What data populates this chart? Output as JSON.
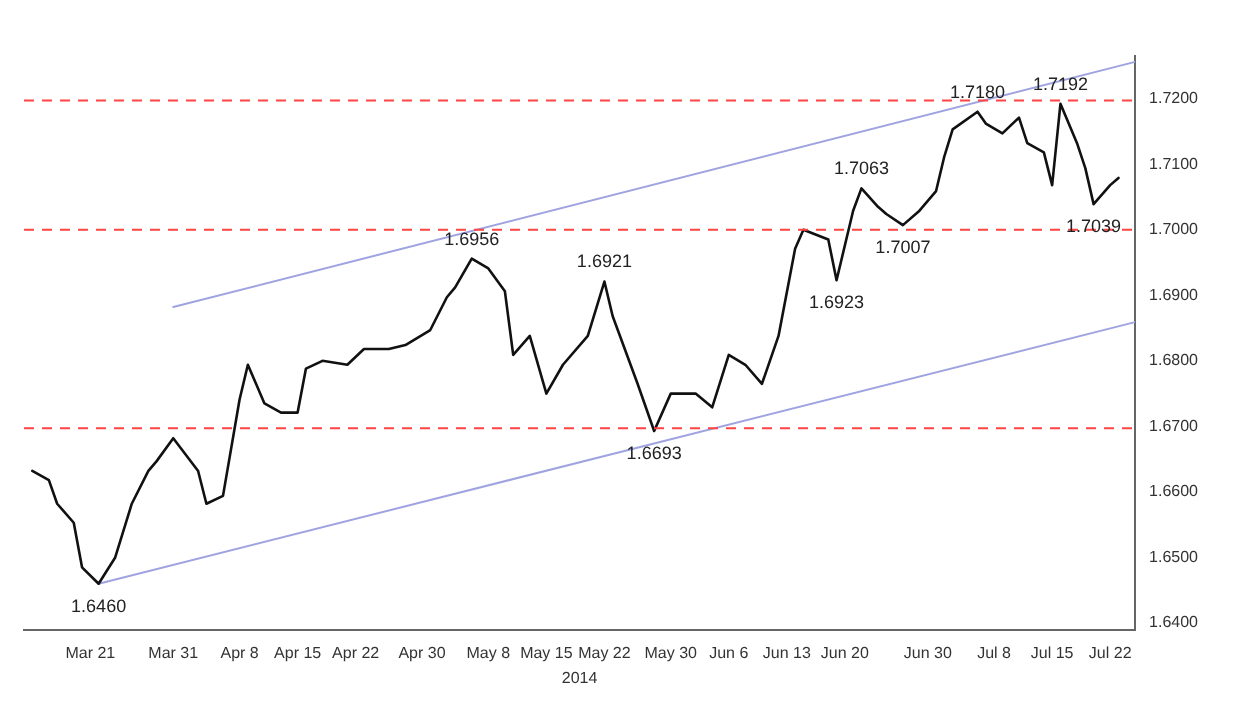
{
  "chart_data": {
    "type": "line",
    "xlabel": "2014",
    "x": [
      "2014-03-14",
      "2014-03-16",
      "2014-03-17",
      "2014-03-19",
      "2014-03-20",
      "2014-03-22",
      "2014-03-24",
      "2014-03-26",
      "2014-03-28",
      "2014-03-29",
      "2014-03-31",
      "2014-04-03",
      "2014-04-04",
      "2014-04-06",
      "2014-04-08",
      "2014-04-09",
      "2014-04-11",
      "2014-04-13",
      "2014-04-15",
      "2014-04-16",
      "2014-04-18",
      "2014-04-21",
      "2014-04-23",
      "2014-04-26",
      "2014-04-28",
      "2014-05-01",
      "2014-05-03",
      "2014-05-04",
      "2014-05-06",
      "2014-05-08",
      "2014-05-10",
      "2014-05-11",
      "2014-05-13",
      "2014-05-15",
      "2014-05-17",
      "2014-05-20",
      "2014-05-22",
      "2014-05-23",
      "2014-05-26",
      "2014-05-28",
      "2014-05-30",
      "2014-06-02",
      "2014-06-04",
      "2014-06-06",
      "2014-06-08",
      "2014-06-10",
      "2014-06-12",
      "2014-06-14",
      "2014-06-15",
      "2014-06-18",
      "2014-06-19",
      "2014-06-21",
      "2014-06-22",
      "2014-06-24",
      "2014-06-25",
      "2014-06-27",
      "2014-06-29",
      "2014-07-01",
      "2014-07-02",
      "2014-07-03",
      "2014-07-06",
      "2014-07-07",
      "2014-07-09",
      "2014-07-11",
      "2014-07-12",
      "2014-07-14",
      "2014-07-15",
      "2014-07-16",
      "2014-07-18",
      "2014-07-19",
      "2014-07-20",
      "2014-07-22",
      "2014-07-23"
    ],
    "series": [
      {
        "color": "#111111",
        "values": [
          1.6632,
          1.6618,
          1.6582,
          1.6553,
          1.6485,
          1.646,
          1.65,
          1.6582,
          1.6632,
          1.6647,
          1.6682,
          1.6632,
          1.6582,
          1.6594,
          1.6741,
          1.6794,
          1.6735,
          1.6721,
          1.6721,
          1.6788,
          1.68,
          1.6794,
          1.6818,
          1.6818,
          1.6824,
          1.6847,
          1.6897,
          1.6912,
          1.6956,
          1.6941,
          1.6906,
          1.6809,
          1.6838,
          1.675,
          1.6794,
          1.6838,
          1.6921,
          1.6868,
          1.6765,
          1.6693,
          1.675,
          1.675,
          1.6729,
          1.6809,
          1.6794,
          1.6765,
          1.6838,
          1.6971,
          1.7,
          1.6985,
          1.6923,
          1.7029,
          1.7063,
          1.7035,
          1.7024,
          1.7007,
          1.7029,
          1.7059,
          1.7112,
          1.7153,
          1.718,
          1.7162,
          1.7147,
          1.7171,
          1.7132,
          1.7118,
          1.7068,
          1.7192,
          1.7132,
          1.7094,
          1.7039,
          1.7068,
          1.7079
        ]
      },
      {
        "type": "line",
        "color": "#9fa3e0",
        "x": [
          "2014-03-31",
          "2014-07-25"
        ],
        "values": [
          1.6882,
          1.7256
        ]
      },
      {
        "type": "line",
        "color": "#9fa3e0",
        "x": [
          "2014-03-22",
          "2014-07-25"
        ],
        "values": [
          1.646,
          1.6859
        ]
      }
    ],
    "xlim": [
      "2014-03-13",
      "2014-07-25"
    ],
    "xticks": [
      {
        "value": "2014-03-21",
        "label": "Mar 21"
      },
      {
        "value": "2014-03-31",
        "label": "Mar 31"
      },
      {
        "value": "2014-04-08",
        "label": "Apr 8"
      },
      {
        "value": "2014-04-15",
        "label": "Apr 15"
      },
      {
        "value": "2014-04-22",
        "label": "Apr 22"
      },
      {
        "value": "2014-04-30",
        "label": "Apr 30"
      },
      {
        "value": "2014-05-08",
        "label": "May 8"
      },
      {
        "value": "2014-05-15",
        "label": "May 15"
      },
      {
        "value": "2014-05-22",
        "label": "May 22"
      },
      {
        "value": "2014-05-30",
        "label": "May 30"
      },
      {
        "value": "2014-06-06",
        "label": "Jun 6"
      },
      {
        "value": "2014-06-13",
        "label": "Jun 13"
      },
      {
        "value": "2014-06-20",
        "label": "Jun 20"
      },
      {
        "value": "2014-06-30",
        "label": "Jun 30"
      },
      {
        "value": "2014-07-08",
        "label": "Jul 8"
      },
      {
        "value": "2014-07-15",
        "label": "Jul 15"
      },
      {
        "value": "2014-07-22",
        "label": "Jul 22"
      }
    ],
    "ylim": [
      1.639,
      1.7265
    ],
    "yticks": [
      {
        "value": 1.64,
        "label": "1.6400"
      },
      {
        "value": 1.65,
        "label": "1.6500"
      },
      {
        "value": 1.66,
        "label": "1.6600"
      },
      {
        "value": 1.67,
        "label": "1.6700"
      },
      {
        "value": 1.68,
        "label": "1.6800"
      },
      {
        "value": 1.69,
        "label": "1.6900"
      },
      {
        "value": 1.7,
        "label": "1.7000"
      },
      {
        "value": 1.71,
        "label": "1.7100"
      },
      {
        "value": 1.72,
        "label": "1.7200"
      }
    ],
    "ref_lines": [
      {
        "axis": "y",
        "value": 1.7197,
        "color": "#ff4444",
        "line_style": "dashed"
      },
      {
        "axis": "y",
        "value": 1.7,
        "color": "#ff4444",
        "line_style": "dashed"
      },
      {
        "axis": "y",
        "value": 1.6697,
        "color": "#ff4444",
        "line_style": "dashed"
      }
    ],
    "annotations": [
      {
        "text": "1.6460",
        "x": "2014-03-22",
        "y": 1.646
      },
      {
        "text": "1.6956",
        "x": "2014-05-06",
        "y": 1.6956
      },
      {
        "text": "1.6921",
        "x": "2014-05-22",
        "y": 1.6921
      },
      {
        "text": "1.6693",
        "x": "2014-05-28",
        "y": 1.6693
      },
      {
        "text": "1.6923",
        "x": "2014-06-19",
        "y": 1.6923
      },
      {
        "text": "1.7063",
        "x": "2014-06-22",
        "y": 1.7063
      },
      {
        "text": "1.7007",
        "x": "2014-06-27",
        "y": 1.7007
      },
      {
        "text": "1.7180",
        "x": "2014-07-06",
        "y": 1.718
      },
      {
        "text": "1.7192",
        "x": "2014-07-16",
        "y": 1.7192
      },
      {
        "text": "1.7039",
        "x": "2014-07-20",
        "y": 1.7039
      }
    ],
    "grid": false,
    "legend": false,
    "marker": "none",
    "line_style": "solid"
  }
}
